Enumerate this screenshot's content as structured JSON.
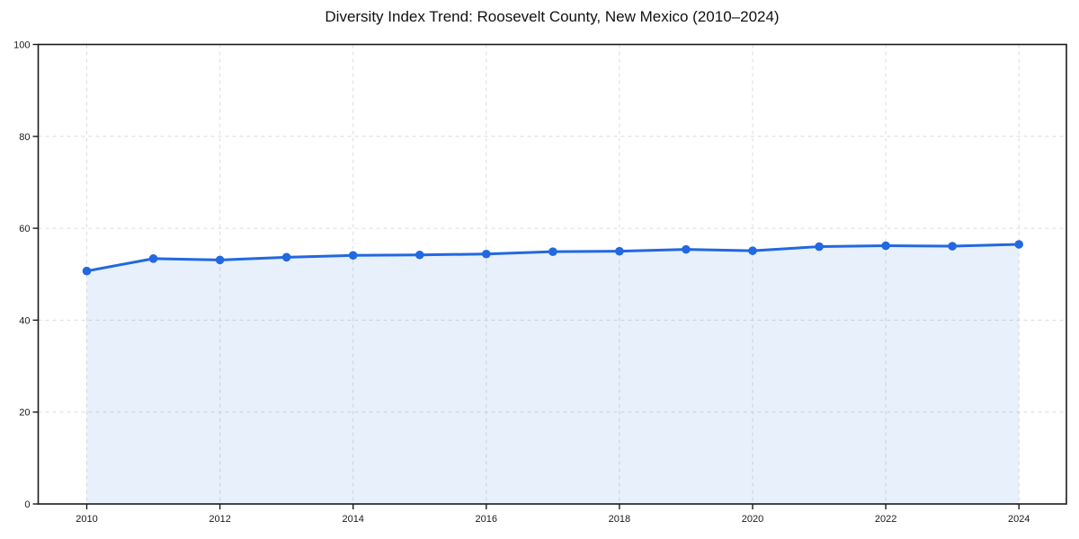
{
  "title": "Diversity Index Trend: Roosevelt County, New Mexico (2010–2024)",
  "chart_data": {
    "type": "area",
    "title": "Diversity Index Trend: Roosevelt County, New Mexico (2010–2024)",
    "x": [
      2010,
      2011,
      2012,
      2013,
      2014,
      2015,
      2016,
      2017,
      2018,
      2019,
      2020,
      2021,
      2022,
      2023,
      2024
    ],
    "series": [
      {
        "name": "Diversity Index",
        "values": [
          50.7,
          53.4,
          53.1,
          53.7,
          54.1,
          54.2,
          54.4,
          54.9,
          55.0,
          55.4,
          55.1,
          56.0,
          56.2,
          56.1,
          56.5
        ]
      }
    ],
    "xlabel": "",
    "ylabel": "",
    "ylim": [
      0,
      100
    ],
    "y_ticks": [
      0,
      20,
      40,
      60,
      80,
      100
    ],
    "x_ticks": [
      2010,
      2012,
      2014,
      2016,
      2018,
      2020,
      2022,
      2024
    ],
    "grid": "dashed",
    "legend": "none",
    "marker": "circle",
    "colors": {
      "line": "#2268e0",
      "fill": "rgba(34,104,224,0.10)",
      "grid": "#dcdcdc",
      "axis": "#1a1a1a",
      "tick_text": "#1a1a1a",
      "background": "#ffffff"
    }
  }
}
